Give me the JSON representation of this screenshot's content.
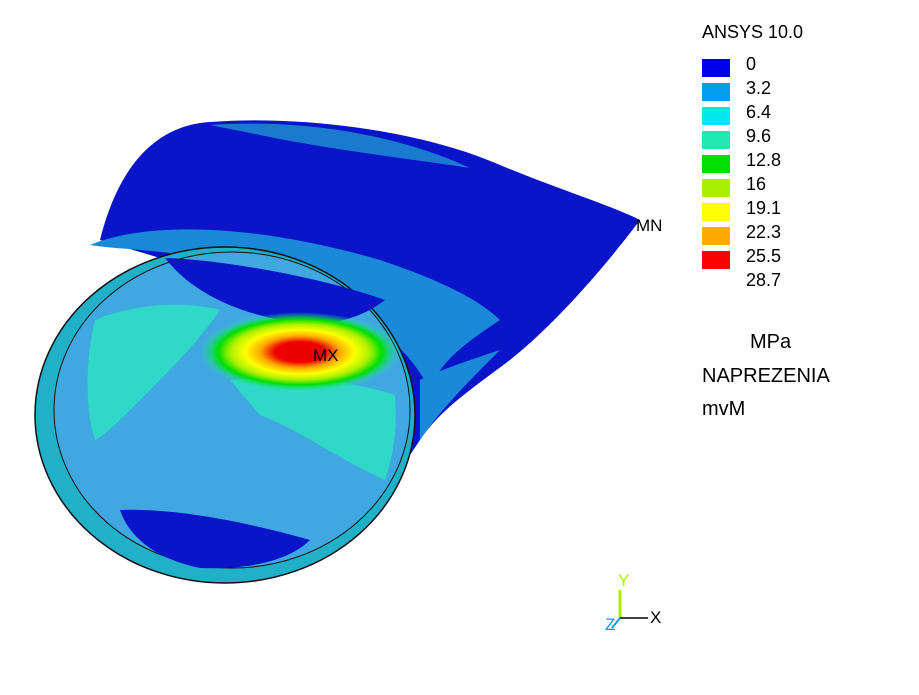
{
  "app": {
    "name": "ANSYS 10.0"
  },
  "legend": {
    "items": [
      {
        "value": "0",
        "color": "#0000ee"
      },
      {
        "value": "3.2",
        "color": "#00a0ee"
      },
      {
        "value": "6.4",
        "color": "#00e8ee"
      },
      {
        "value": "9.6",
        "color": "#20e8b0"
      },
      {
        "value": "12.8",
        "color": "#00e000"
      },
      {
        "value": "16",
        "color": "#a8f000"
      },
      {
        "value": "19.1",
        "color": "#ffff00"
      },
      {
        "value": "22.3",
        "color": "#ffaa00"
      },
      {
        "value": "25.5",
        "color": "#ff0000"
      },
      {
        "value": "28.7",
        "color": "#ffffff"
      }
    ]
  },
  "plot": {
    "units": "MPa",
    "title": "NAPREZENIA",
    "subtitle": "mvM",
    "max_label": "MX",
    "min_label": "MN"
  },
  "triad": {
    "y": "Y",
    "x": "X",
    "z": "Z"
  }
}
